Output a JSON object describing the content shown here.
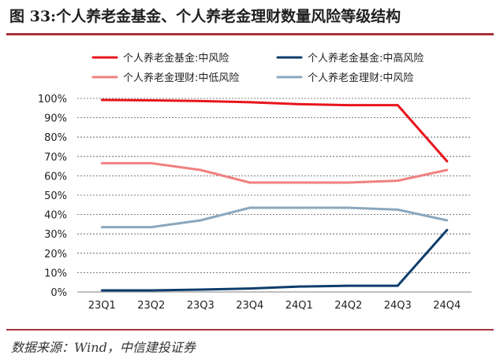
{
  "title": "图 33:个人养老金基金、个人养老金理财数量风险等级结构",
  "source": "数据来源：Wind，中信建投证券",
  "chart_data": {
    "type": "line",
    "categories": [
      "23Q1",
      "23Q2",
      "23Q3",
      "23Q4",
      "24Q1",
      "24Q2",
      "24Q3",
      "24Q4"
    ],
    "yticks": [
      "0%",
      "10%",
      "20%",
      "30%",
      "40%",
      "50%",
      "60%",
      "70%",
      "80%",
      "90%",
      "100%"
    ],
    "ylim": [
      0,
      100
    ],
    "grid": "horizontal-dashed",
    "legend_position": "top",
    "series": [
      {
        "name": "个人养老金基金:中风险",
        "color": "#e8141c",
        "values": [
          99.2,
          99.0,
          98.6,
          98.0,
          97.0,
          96.5,
          96.5,
          67.5
        ]
      },
      {
        "name": "个人养老金基金:中高风险",
        "color": "#0d3d6b",
        "values": [
          0.8,
          0.8,
          1.2,
          1.8,
          2.8,
          3.2,
          3.2,
          32.0
        ]
      },
      {
        "name": "个人养老金理财:中低风险",
        "color": "#f08080",
        "values": [
          66.5,
          66.5,
          63.0,
          56.5,
          56.5,
          56.5,
          57.5,
          63.0
        ]
      },
      {
        "name": "个人养老金理财:中风险",
        "color": "#8aa8bf",
        "values": [
          33.5,
          33.5,
          37.0,
          43.5,
          43.5,
          43.5,
          42.5,
          37.0
        ]
      }
    ]
  }
}
